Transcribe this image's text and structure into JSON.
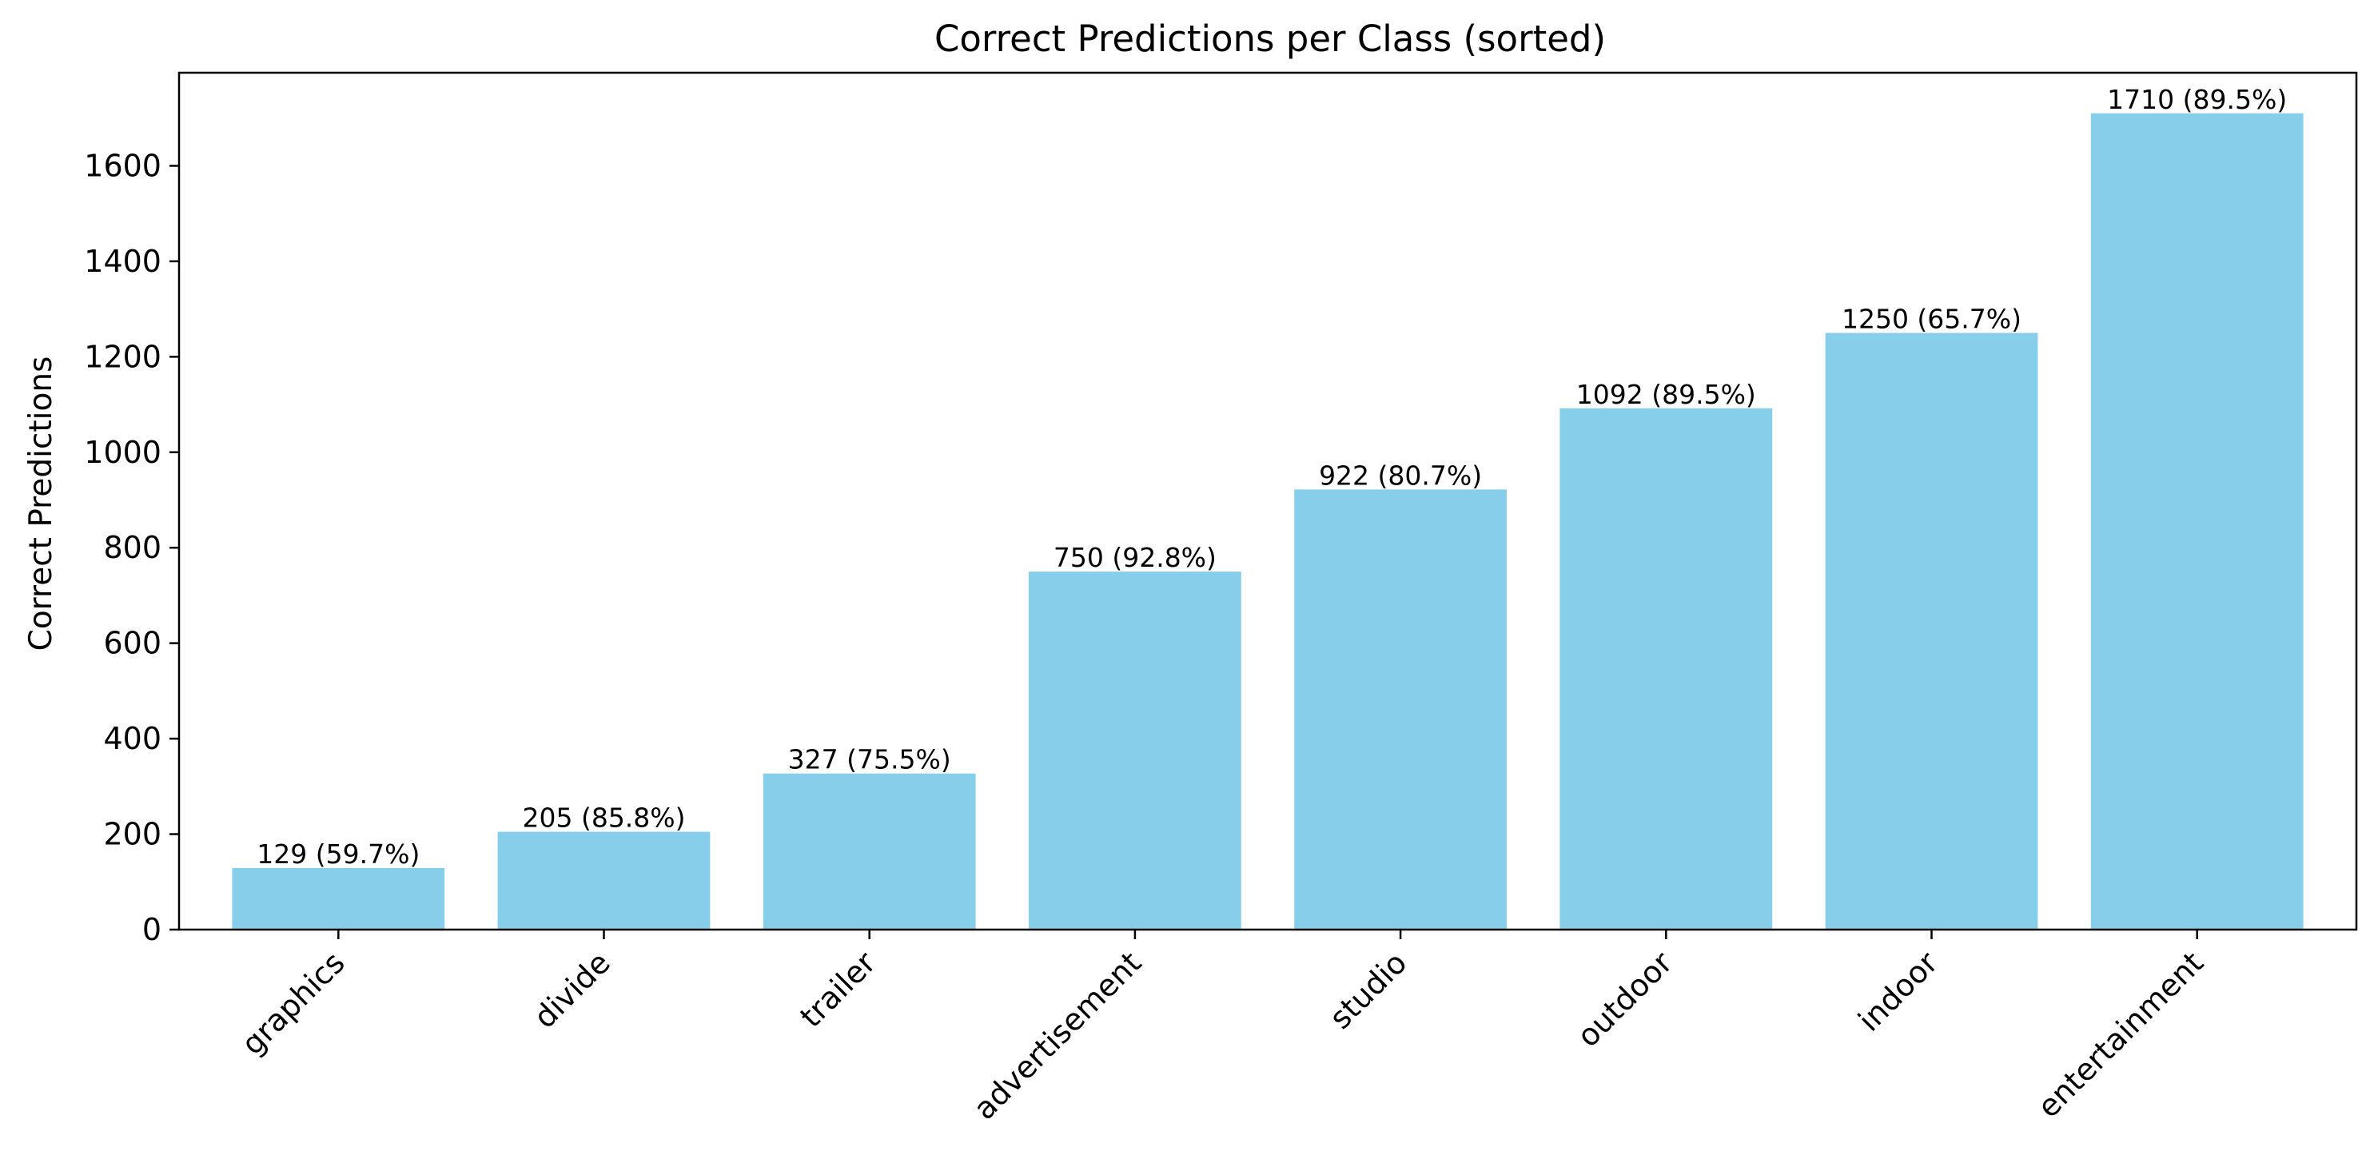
{
  "chart_data": {
    "type": "bar",
    "title": "Correct Predictions per Class (sorted)",
    "xlabel": "",
    "ylabel": "Correct Predictions",
    "categories": [
      "graphics",
      "divide",
      "trailer",
      "advertisement",
      "studio",
      "outdoor",
      "indoor",
      "entertainment"
    ],
    "values": [
      129,
      205,
      327,
      750,
      922,
      1092,
      1250,
      1710
    ],
    "bar_labels": [
      "129 (59.7%)",
      "205 (85.8%)",
      "327 (75.5%)",
      "750 (92.8%)",
      "922 (80.7%)",
      "1092 (89.5%)",
      "1250 (65.7%)",
      "1710 (89.5%)"
    ],
    "ylim": [
      0,
      1795
    ],
    "yticks": [
      0,
      200,
      400,
      600,
      800,
      1000,
      1200,
      1400,
      1600
    ],
    "grid": false,
    "legend": "none",
    "bar_color": "#87ceeb"
  }
}
